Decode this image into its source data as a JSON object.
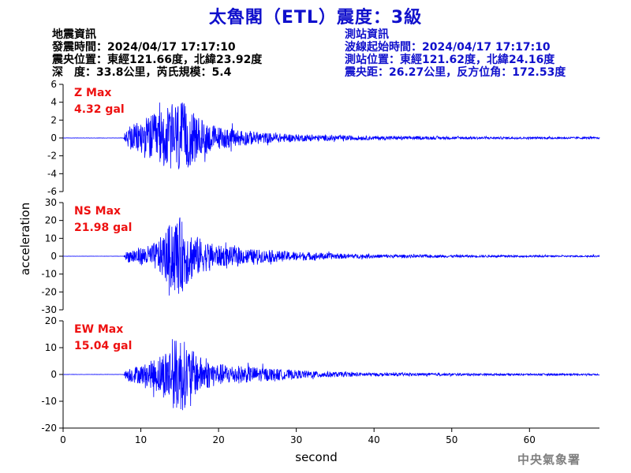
{
  "header": {
    "title": "太魯閣（ETL）震度：3級",
    "quake_info": [
      "地震資訊",
      "發震時間：2024/04/17 17:17:10",
      "震央位置：東經121.66度，北緯23.92度",
      "深　度：33.8公里，芮氏規模：5.4"
    ],
    "station_info": [
      "測站資訊",
      "波線起始時間：2024/04/17 17:17:10",
      "測站位置：東經121.62度，北緯24.16度",
      "震央距：26.27公里，反方位角：172.53度"
    ]
  },
  "credit": "中央氣象署",
  "colors": {
    "title": "#1010cc",
    "trace": "#0000ff",
    "max_label": "#ee1111",
    "axis": "#000000"
  },
  "chart_data": {
    "type": "line",
    "xlabel": "second",
    "ylabel": "acceleration",
    "xlim": [
      0,
      69
    ],
    "xticks": [
      0,
      10,
      20,
      30,
      40,
      50,
      60
    ],
    "panels": [
      {
        "id": "z",
        "name": "Z Max",
        "max_label": "4.32 gal",
        "peak": 4.32,
        "ylim": [
          -6,
          6
        ],
        "yticks": [
          6,
          4,
          2,
          0,
          -2,
          -4,
          -6
        ],
        "envelope": [
          [
            0,
            0.02
          ],
          [
            7.8,
            0.02
          ],
          [
            8.2,
            1.0
          ],
          [
            9,
            1.5
          ],
          [
            10,
            2.0
          ],
          [
            11,
            2.5
          ],
          [
            12,
            2.8
          ],
          [
            13,
            3.2
          ],
          [
            14,
            3.8
          ],
          [
            15,
            4.32
          ],
          [
            16,
            3.5
          ],
          [
            17,
            2.6
          ],
          [
            18,
            2.0
          ],
          [
            19,
            1.6
          ],
          [
            20,
            1.3
          ],
          [
            22,
            1.0
          ],
          [
            24,
            0.8
          ],
          [
            26,
            0.6
          ],
          [
            28,
            0.5
          ],
          [
            30,
            0.4
          ],
          [
            35,
            0.3
          ],
          [
            40,
            0.22
          ],
          [
            50,
            0.15
          ],
          [
            60,
            0.12
          ],
          [
            69,
            0.1
          ]
        ]
      },
      {
        "id": "ns",
        "name": "NS Max",
        "max_label": "21.98 gal",
        "peak": 21.98,
        "ylim": [
          -30,
          30
        ],
        "yticks": [
          30,
          20,
          10,
          0,
          -10,
          -20,
          -30
        ],
        "envelope": [
          [
            0,
            0.05
          ],
          [
            7.8,
            0.05
          ],
          [
            8.2,
            3
          ],
          [
            9,
            4.5
          ],
          [
            10,
            5
          ],
          [
            11,
            6
          ],
          [
            12,
            8
          ],
          [
            13,
            13
          ],
          [
            14,
            20
          ],
          [
            15,
            21.98
          ],
          [
            16,
            16
          ],
          [
            17,
            12
          ],
          [
            18,
            9
          ],
          [
            19,
            7.5
          ],
          [
            20,
            6
          ],
          [
            22,
            5
          ],
          [
            24,
            4
          ],
          [
            26,
            3.5
          ],
          [
            28,
            3
          ],
          [
            30,
            2.5
          ],
          [
            33,
            2
          ],
          [
            36,
            1.4
          ],
          [
            40,
            1.0
          ],
          [
            50,
            0.7
          ],
          [
            60,
            0.5
          ],
          [
            69,
            0.4
          ]
        ]
      },
      {
        "id": "ew",
        "name": "EW Max",
        "max_label": "15.04 gal",
        "peak": 15.04,
        "ylim": [
          -20,
          20
        ],
        "yticks": [
          20,
          10,
          0,
          -10,
          -20
        ],
        "envelope": [
          [
            0,
            0.05
          ],
          [
            7.8,
            0.05
          ],
          [
            8.2,
            2.5
          ],
          [
            9,
            3
          ],
          [
            10,
            3.5
          ],
          [
            11,
            4.5
          ],
          [
            12,
            6.5
          ],
          [
            13,
            9
          ],
          [
            14,
            12
          ],
          [
            15,
            15.04
          ],
          [
            16,
            11
          ],
          [
            17,
            8
          ],
          [
            18,
            6
          ],
          [
            19,
            5
          ],
          [
            20,
            4
          ],
          [
            22,
            3.5
          ],
          [
            24,
            3
          ],
          [
            26,
            2.5
          ],
          [
            28,
            2
          ],
          [
            30,
            1.6
          ],
          [
            33,
            1.2
          ],
          [
            36,
            0.9
          ],
          [
            40,
            0.6
          ],
          [
            50,
            0.45
          ],
          [
            60,
            0.35
          ],
          [
            69,
            0.3
          ]
        ]
      }
    ]
  }
}
